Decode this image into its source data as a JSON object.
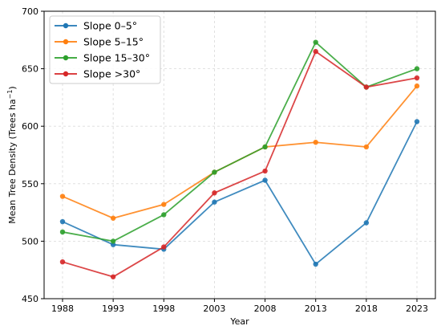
{
  "chart_data": {
    "type": "line",
    "title": "",
    "xlabel": "Year",
    "ylabel_main": "Mean Tree Density (Trees ha",
    "ylabel_sup": "−1",
    "ylabel_end": ")",
    "x": [
      1988,
      1993,
      1998,
      2003,
      2008,
      2013,
      2018,
      2023
    ],
    "x_tick_labels": [
      "1988",
      "1993",
      "1998",
      "2003",
      "2008",
      "2013",
      "2018",
      "2023"
    ],
    "ylim": [
      450,
      700
    ],
    "y_ticks": [
      450,
      500,
      550,
      600,
      650,
      700
    ],
    "y_tick_labels": [
      "450",
      "500",
      "550",
      "600",
      "650",
      "700"
    ],
    "grid": true,
    "legend_position": "top-left",
    "series": [
      {
        "name": "Slope 0–5°",
        "color": "#1f77b4",
        "values": [
          517,
          497,
          493,
          534,
          553,
          480,
          516,
          604
        ]
      },
      {
        "name": "Slope 5–15°",
        "color": "#ff7f0e",
        "values": [
          539,
          520,
          532,
          560,
          582,
          586,
          582,
          635
        ]
      },
      {
        "name": "Slope 15–30°",
        "color": "#2ca02c",
        "values": [
          508,
          500,
          523,
          560,
          582,
          673,
          634,
          650
        ]
      },
      {
        "name": "Slope >30°",
        "color": "#d62728",
        "values": [
          482,
          469,
          495,
          542,
          561,
          665,
          634,
          642
        ]
      }
    ]
  }
}
